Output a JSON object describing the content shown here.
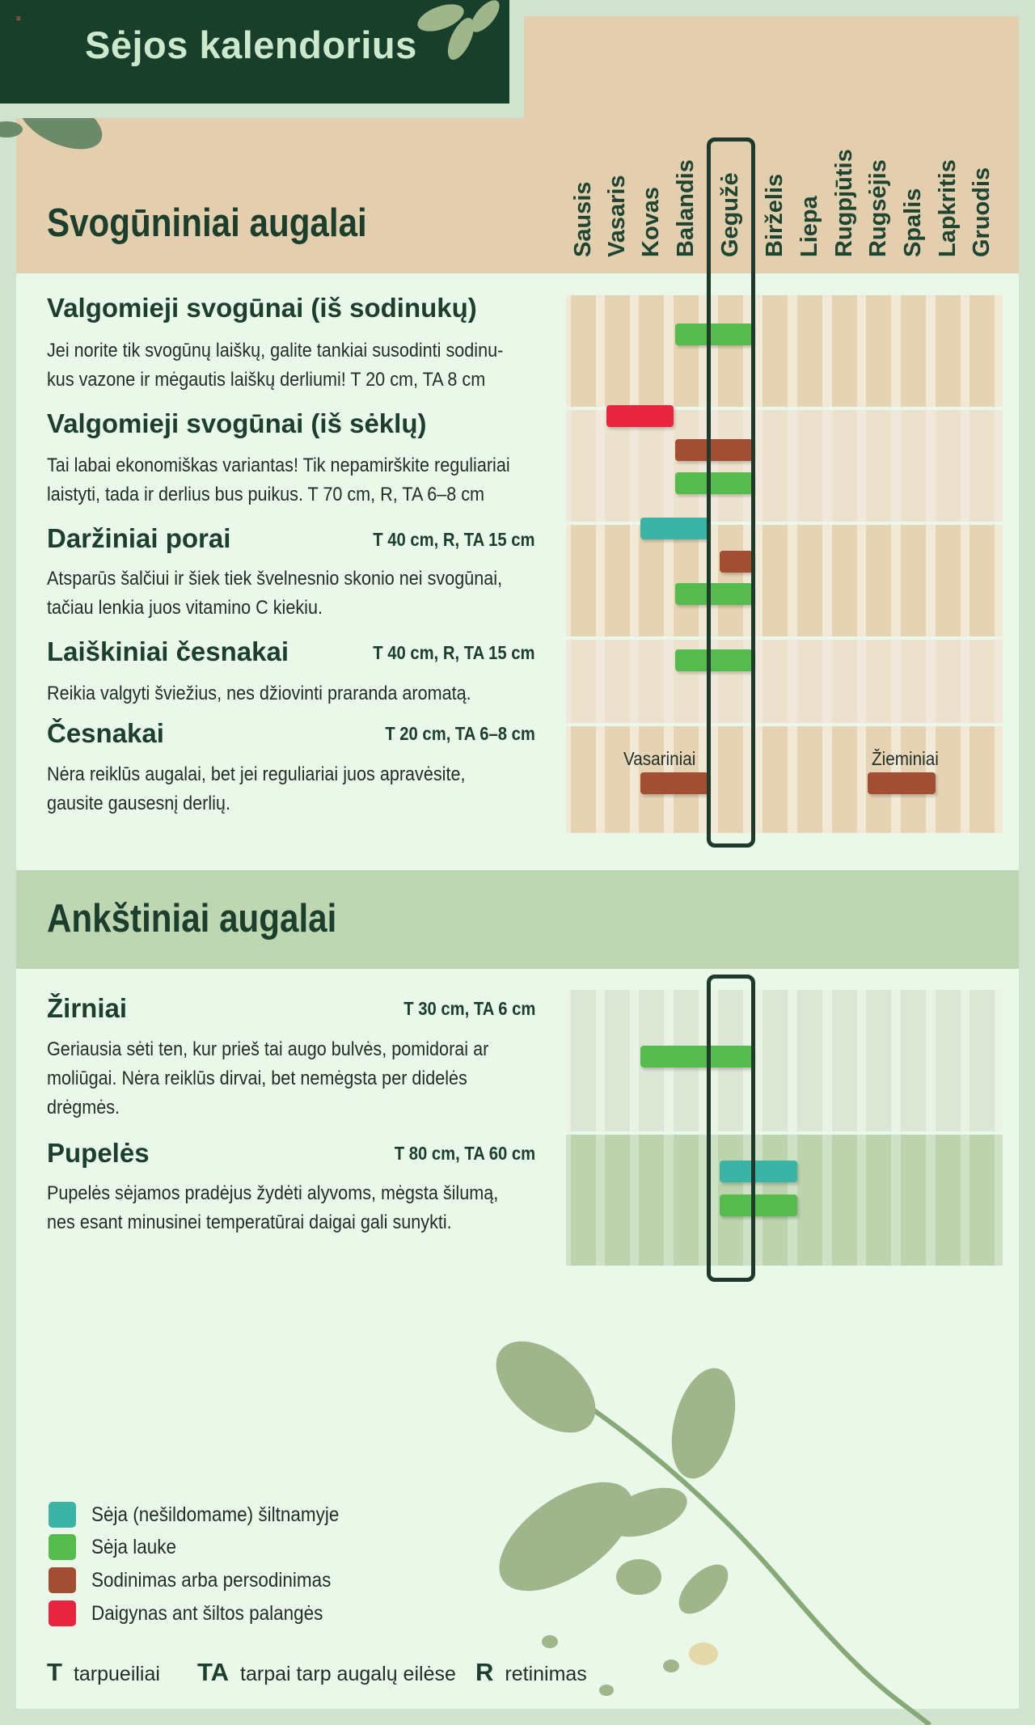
{
  "header": {
    "title": "Sėjos kalendorius",
    "flag": "≡"
  },
  "months": [
    "Sausis",
    "Vasaris",
    "Kovas",
    "Balandis",
    "Gegužė",
    "Birželis",
    "Liepa",
    "Rugpjūtis",
    "Rugsėjis",
    "Spalis",
    "Lapkritis",
    "Gruodis"
  ],
  "highlighted_month": "Gegužė",
  "colors": {
    "greenhouse": "#3bb3a5",
    "outdoor": "#55bb4c",
    "transplant": "#a14e33",
    "windowsill": "#e9243f"
  },
  "sections": [
    {
      "title": "Svogūniniai augalai",
      "crops": [
        {
          "name": "Valgomieji svogūnai (iš sodinukų)",
          "meta": "",
          "desc": "Jei norite tik svogūnų laiškų, galite tankiai susodinti sodinu-kus vazone ir mėgautis laiškų derliumi! T 20 cm, TA 8 cm"
        },
        {
          "name": "Valgomieji svogūnai (iš sėklų)",
          "meta": "",
          "desc": "Tai labai ekonomiškas variantas! Tik nepamirškite reguliariai laistyti, tada ir derlius bus puikus.  T 70 cm, R, TA 6–8 cm"
        },
        {
          "name": "Daržiniai porai",
          "meta": "T 40 cm, R, TA 15 cm",
          "desc": "Atsparūs šalčiui ir šiek tiek švelnesnio skonio nei svogūnai, tačiau lenkia juos vitamino C kiekiu."
        },
        {
          "name": "Laiškiniai česnakai",
          "meta": "T 40 cm, R, TA 15 cm",
          "desc": "Reikia valgyti šviežius, nes džiovinti praranda aromatą."
        },
        {
          "name": "Česnakai",
          "meta": "T 20 cm, TA 6–8 cm",
          "desc": "Nėra reiklūs augalai, bet jei reguliariai juos apravėsite, gausite gausesnį derlių."
        }
      ],
      "grid_labels": [
        "Vasariniai",
        "Žieminiai"
      ]
    },
    {
      "title": "Ankštiniai augalai",
      "crops": [
        {
          "name": "Žirniai",
          "meta": "T 30 cm, TA 6 cm",
          "desc": "Geriausia sėti ten, kur prieš tai augo bulvės, pomidorai ar moliūgai. Nėra reiklūs dirvai, bet nemėgsta per didelės drėgmės."
        },
        {
          "name": "Pupelės",
          "meta": "T 80 cm, TA 60 cm",
          "desc": "Pupelės sėjamos pradėjus žydėti alyvoms, mėgsta šilumą, nes esant minusinei temperatūrai daigai gali sunykti."
        }
      ]
    }
  ],
  "schedule": [
    {
      "crop": "Valgomieji svogūnai (iš sodinukų)",
      "type": "outdoor",
      "start_month": 4,
      "end_month": 5
    },
    {
      "crop": "Valgomieji svogūnai (iš sėklų)",
      "type": "windowsill",
      "start_month": 2,
      "end_month": 3
    },
    {
      "crop": "Valgomieji svogūnai (iš sėklų)",
      "type": "transplant",
      "start_month": 4,
      "end_month": 5
    },
    {
      "crop": "Valgomieji svogūnai (iš sėklų)",
      "type": "outdoor",
      "start_month": 4,
      "end_month": 5
    },
    {
      "crop": "Daržiniai porai",
      "type": "greenhouse",
      "start_month": 3,
      "end_month": 4
    },
    {
      "crop": "Daržiniai porai",
      "type": "transplant",
      "start_month": 5,
      "end_month": 5
    },
    {
      "crop": "Daržiniai porai",
      "type": "outdoor",
      "start_month": 4,
      "end_month": 5
    },
    {
      "crop": "Laiškiniai česnakai",
      "type": "outdoor",
      "start_month": 4,
      "end_month": 5
    },
    {
      "crop": "Česnakai",
      "type": "transplant",
      "start_month": 3,
      "end_month": 4,
      "label": "Vasariniai"
    },
    {
      "crop": "Česnakai",
      "type": "transplant",
      "start_month": 9,
      "end_month": 10,
      "label": "Žieminiai"
    },
    {
      "crop": "Žirniai",
      "type": "outdoor",
      "start_month": 3,
      "end_month": 5
    },
    {
      "crop": "Pupelės",
      "type": "greenhouse",
      "start_month": 5,
      "end_month": 6
    },
    {
      "crop": "Pupelės",
      "type": "outdoor",
      "start_month": 5,
      "end_month": 6
    }
  ],
  "legend": [
    {
      "type": "greenhouse",
      "label": "Sėja (nešildomame) šiltnamyje"
    },
    {
      "type": "outdoor",
      "label": "Sėja lauke"
    },
    {
      "type": "transplant",
      "label": "Sodinimas arba persodinimas"
    },
    {
      "type": "windowsill",
      "label": "Daigynas ant šiltos palangės"
    }
  ],
  "abbreviations": [
    {
      "key": "T",
      "label": "tarpueiliai"
    },
    {
      "key": "TA",
      "label": "tarpai tarp augalų eilėse"
    },
    {
      "key": "R",
      "label": "retinimas"
    }
  ]
}
